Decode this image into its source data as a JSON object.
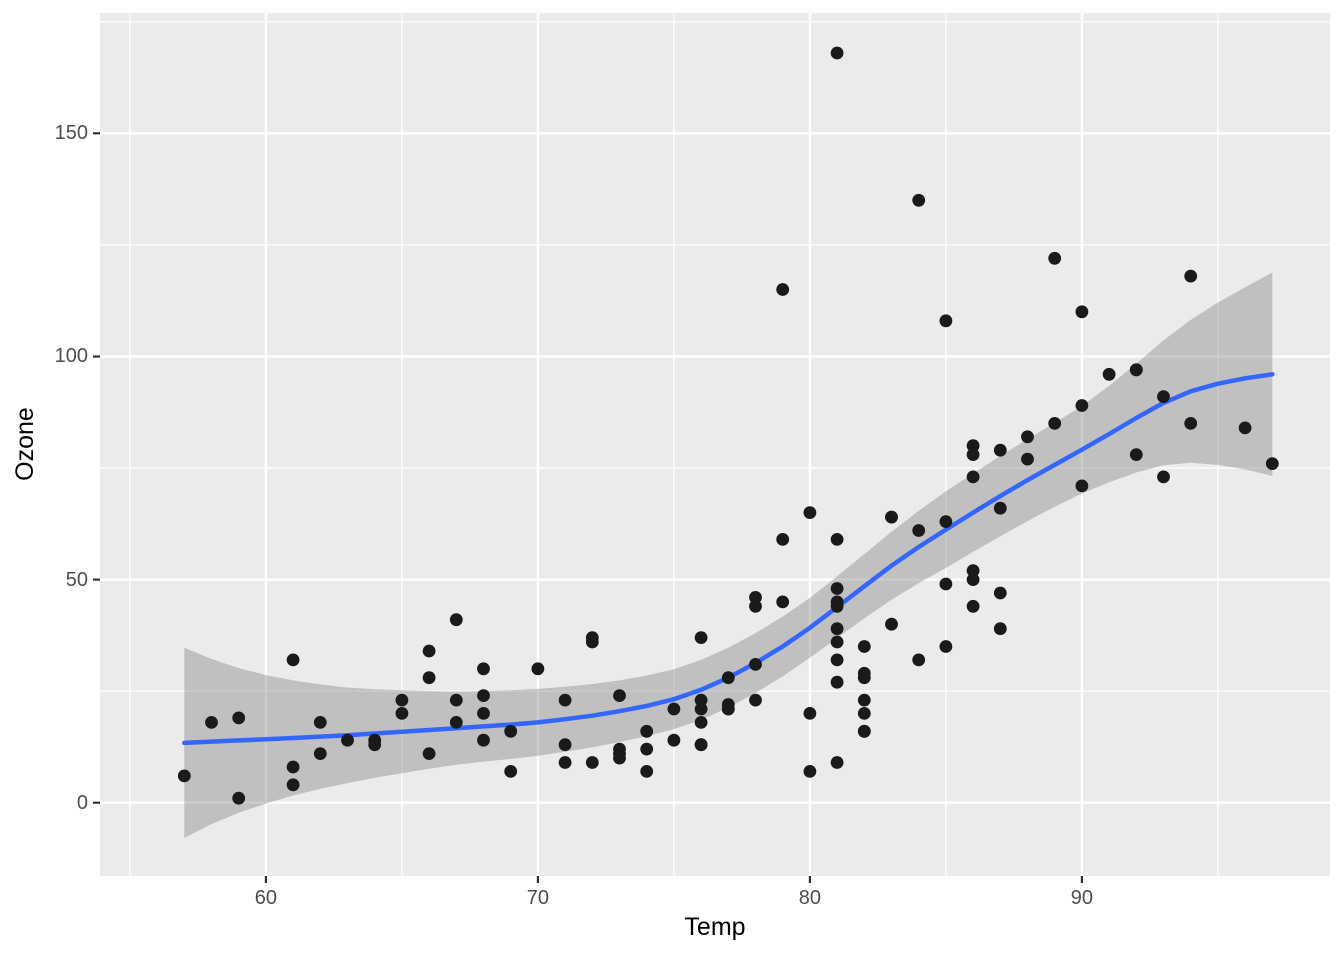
{
  "chart_data": {
    "type": "scatter",
    "title": "",
    "xlabel": "Temp",
    "ylabel": "Ozone",
    "legend": "none",
    "grid": "white major and minor gridlines on grey panel",
    "xlim": [
      53.9,
      99.12
    ],
    "ylim": [
      -16.43,
      176.97
    ],
    "x_major_ticks": [
      60,
      70,
      80,
      90
    ],
    "x_minor_ticks": [
      55,
      65,
      75,
      85,
      95
    ],
    "x_tick_labels": [
      "60",
      "70",
      "80",
      "90"
    ],
    "y_major_ticks": [
      0,
      50,
      100,
      150
    ],
    "y_minor_ticks": [
      25,
      75,
      125,
      175
    ],
    "y_tick_labels": [
      "0",
      "50",
      "100",
      "150"
    ],
    "points": [
      [
        67,
        41
      ],
      [
        72,
        36
      ],
      [
        74,
        12
      ],
      [
        62,
        18
      ],
      [
        66,
        28
      ],
      [
        65,
        23
      ],
      [
        59,
        19
      ],
      [
        61,
        8
      ],
      [
        74,
        7
      ],
      [
        69,
        16
      ],
      [
        66,
        11
      ],
      [
        68,
        14
      ],
      [
        58,
        18
      ],
      [
        64,
        14
      ],
      [
        66,
        34
      ],
      [
        57,
        6
      ],
      [
        68,
        30
      ],
      [
        62,
        11
      ],
      [
        59,
        1
      ],
      [
        73,
        11
      ],
      [
        61,
        4
      ],
      [
        61,
        32
      ],
      [
        67,
        23
      ],
      [
        81,
        45
      ],
      [
        79,
        115
      ],
      [
        76,
        37
      ],
      [
        82,
        29
      ],
      [
        90,
        71
      ],
      [
        87,
        39
      ],
      [
        82,
        23
      ],
      [
        77,
        21
      ],
      [
        72,
        37
      ],
      [
        65,
        20
      ],
      [
        73,
        12
      ],
      [
        76,
        13
      ],
      [
        84,
        135
      ],
      [
        85,
        49
      ],
      [
        81,
        32
      ],
      [
        83,
        64
      ],
      [
        83,
        40
      ],
      [
        88,
        77
      ],
      [
        92,
        97
      ],
      [
        92,
        97
      ],
      [
        89,
        85
      ],
      [
        73,
        10
      ],
      [
        81,
        27
      ],
      [
        80,
        7
      ],
      [
        81,
        48
      ],
      [
        82,
        35
      ],
      [
        84,
        61
      ],
      [
        87,
        79
      ],
      [
        85,
        63
      ],
      [
        74,
        16
      ],
      [
        86,
        80
      ],
      [
        85,
        108
      ],
      [
        82,
        20
      ],
      [
        86,
        52
      ],
      [
        88,
        82
      ],
      [
        86,
        50
      ],
      [
        83,
        64
      ],
      [
        81,
        59
      ],
      [
        81,
        39
      ],
      [
        81,
        9
      ],
      [
        82,
        16
      ],
      [
        86,
        78
      ],
      [
        85,
        35
      ],
      [
        87,
        66
      ],
      [
        89,
        122
      ],
      [
        90,
        89
      ],
      [
        90,
        110
      ],
      [
        86,
        44
      ],
      [
        82,
        28
      ],
      [
        80,
        65
      ],
      [
        77,
        22
      ],
      [
        79,
        59
      ],
      [
        76,
        23
      ],
      [
        78,
        31
      ],
      [
        78,
        44
      ],
      [
        77,
        21
      ],
      [
        72,
        9
      ],
      [
        79,
        45
      ],
      [
        81,
        168
      ],
      [
        86,
        73
      ],
      [
        97,
        76
      ],
      [
        94,
        118
      ],
      [
        96,
        84
      ],
      [
        94,
        85
      ],
      [
        91,
        96
      ],
      [
        92,
        78
      ],
      [
        93,
        73
      ],
      [
        93,
        91
      ],
      [
        87,
        47
      ],
      [
        84,
        32
      ],
      [
        80,
        20
      ],
      [
        78,
        23
      ],
      [
        75,
        21
      ],
      [
        73,
        24
      ],
      [
        81,
        44
      ],
      [
        76,
        21
      ],
      [
        77,
        28
      ],
      [
        71,
        9
      ],
      [
        71,
        13
      ],
      [
        78,
        46
      ],
      [
        67,
        18
      ],
      [
        76,
        13
      ],
      [
        68,
        24
      ],
      [
        82,
        16
      ],
      [
        64,
        13
      ],
      [
        71,
        23
      ],
      [
        81,
        36
      ],
      [
        69,
        7
      ],
      [
        63,
        14
      ],
      [
        70,
        30
      ],
      [
        75,
        14
      ],
      [
        76,
        18
      ],
      [
        68,
        20
      ]
    ],
    "smooth": {
      "name": "loess smooth with 95% confidence ribbon",
      "x": [
        57,
        58,
        59,
        60,
        61,
        62,
        63,
        64,
        65,
        66,
        67,
        68,
        69,
        70,
        71,
        72,
        73,
        74,
        75,
        76,
        77,
        78,
        79,
        80,
        81,
        82,
        83,
        84,
        85,
        86,
        87,
        88,
        89,
        90,
        91,
        92,
        93,
        94,
        95,
        96,
        97
      ],
      "fit": [
        13.4,
        13.7,
        13.95,
        14.2,
        14.5,
        14.8,
        15.1,
        15.5,
        15.9,
        16.3,
        16.7,
        17.1,
        17.5,
        18.0,
        18.7,
        19.5,
        20.5,
        21.7,
        23.2,
        25.3,
        28.0,
        31.3,
        35.0,
        39.2,
        43.8,
        48.5,
        53.1,
        57.3,
        61.2,
        65.0,
        68.7,
        72.3,
        75.7,
        79.1,
        82.6,
        86.2,
        89.6,
        92.2,
        93.9,
        95.1,
        96.0
      ],
      "ci_halfwidth": [
        21.3,
        18.5,
        16.2,
        14.4,
        12.9,
        11.7,
        10.7,
        9.9,
        9.3,
        8.7,
        8.2,
        7.9,
        7.7,
        7.5,
        7.3,
        7.1,
        6.9,
        6.8,
        6.7,
        6.7,
        6.7,
        6.7,
        6.7,
        6.7,
        6.9,
        7.2,
        7.6,
        8.1,
        8.6,
        8.8,
        9.0,
        9.2,
        9.4,
        9.8,
        10.8,
        12.2,
        14.0,
        16.0,
        18.2,
        20.4,
        22.8
      ]
    },
    "colors": {
      "point": "#1A1A1A",
      "smooth_line": "#3366FF",
      "ribbon": "rgba(128,128,128,0.40)",
      "panel_background": "#EBEBEB",
      "gridline": "#FFFFFF",
      "tick_text": "#4D4D4D",
      "axis_title": "#000000",
      "tick_mark": "#333333"
    }
  }
}
